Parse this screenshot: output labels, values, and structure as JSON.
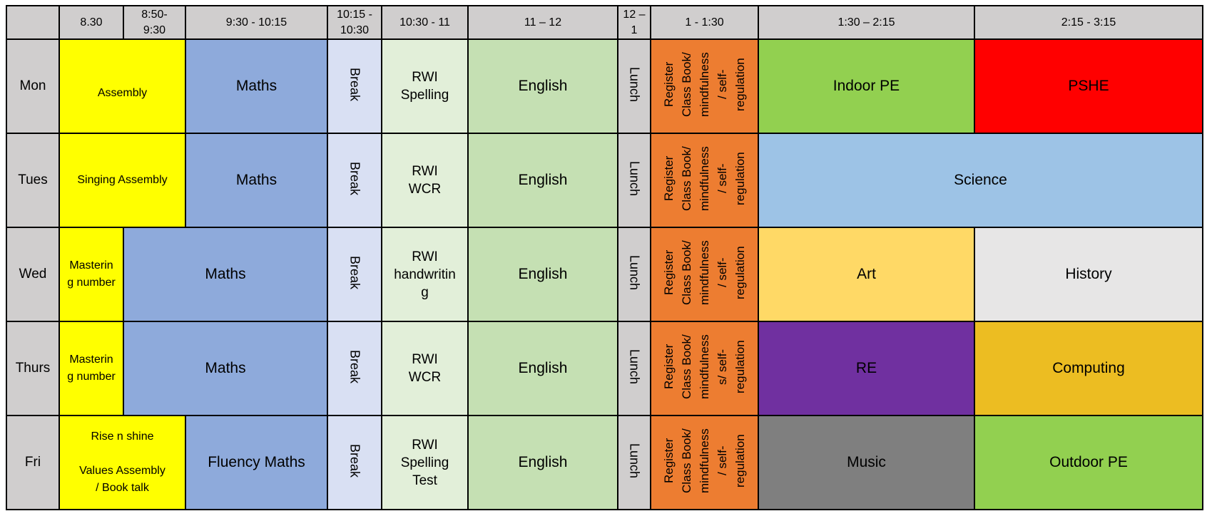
{
  "header": [
    "",
    "8.30",
    "8:50-\n9:30",
    "9:30 - 10:15",
    "10:15 -\n10:30",
    "10:30 - 11",
    "11 – 12",
    "12 –\n1",
    "1 - 1:30",
    "1:30 – 2:15",
    "2:15 - 3:15"
  ],
  "days": [
    "Mon",
    "Tues",
    "Wed",
    "Thurs",
    "Fri"
  ],
  "mon": {
    "assembly": "Assembly",
    "maths": "Maths",
    "break": "Break",
    "rwi": "RWI\nSpelling",
    "english": "English",
    "lunch": "Lunch",
    "register": "Register\nClass Book/\nmindfulness\n/ self-\nregulation",
    "pm1": "Indoor PE",
    "pm2": "PSHE"
  },
  "tues": {
    "assembly": "Singing Assembly",
    "maths": "Maths",
    "break": "Break",
    "rwi": "RWI\nWCR",
    "english": "English",
    "lunch": "Lunch",
    "register": "Register\nClass Book/\nmindfulness\n/ self-\nregulation",
    "pm": "Science"
  },
  "wed": {
    "mastering": "Masterin\ng number",
    "maths": "Maths",
    "break": "Break",
    "rwi": "RWI\nhandwritin\ng",
    "english": "English",
    "lunch": "Lunch",
    "register": "Register\nClass Book/\nmindfulness\n/ self-\nregulation",
    "pm1": "Art",
    "pm2": "History"
  },
  "thurs": {
    "mastering": "Masterin\ng number",
    "maths": "Maths",
    "break": "Break",
    "rwi": "RWI\nWCR",
    "english": "English",
    "lunch": "Lunch",
    "register": "Register\nClass Book/\nmindfulness\ns/ self-\nregulation",
    "pm1": "RE",
    "pm2": "Computing"
  },
  "fri": {
    "assembly": "Rise n shine\n\nValues Assembly\n/ Book talk",
    "maths": "Fluency Maths",
    "break": "Break",
    "rwi": "RWI\nSpelling\nTest",
    "english": "English",
    "lunch": "Lunch",
    "register": "Register\nClass Book/\nmindfulness\n/ self-\nregulation",
    "pm1": "Music",
    "pm2": "Outdoor PE"
  },
  "colors": {
    "header": "#d0cece",
    "assembly": "#ffff00",
    "maths": "#8eaadb",
    "break": "#d9e0f3",
    "rwi": "#e2efd9",
    "english": "#c5e0b3",
    "register": "#ed7d31",
    "indoor_pe": "#92d050",
    "pshe": "#ff0000",
    "science": "#9dc3e6",
    "art": "#ffd966",
    "history": "#e7e6e6",
    "re": "#7030a0",
    "computing": "#ecbd22",
    "music": "#7f7f7f",
    "outdoor_pe": "#92d050"
  }
}
